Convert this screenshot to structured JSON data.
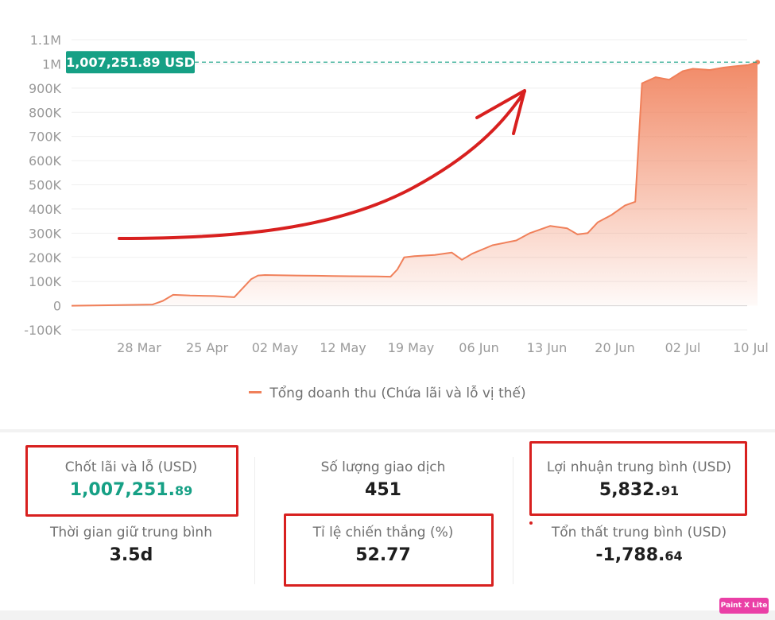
{
  "chart_data": {
    "type": "area",
    "y_ticks": [
      "1.1M",
      "1M",
      "900K",
      "800K",
      "700K",
      "600K",
      "500K",
      "400K",
      "300K",
      "200K",
      "100K",
      "0",
      "-100K"
    ],
    "x_ticks": [
      "28 Mar",
      "25 Apr",
      "02 May",
      "12 May",
      "19 May",
      "06 Jun",
      "13 Jun",
      "20 Jun",
      "02 Jul",
      "10 Jul"
    ],
    "ylim": [
      -100000,
      1100000
    ],
    "grid": true,
    "legend_position": "bottom-center",
    "series": [
      {
        "name": "Tổng doanh thu (Chứa lãi và lỗ vị thế)",
        "color": "#f0805a",
        "x_index": [
          0,
          0.55,
          1.2,
          1.35,
          1.5,
          1.75,
          2.1,
          2.4,
          2.65,
          2.75,
          2.85,
          3.3,
          3.6,
          3.85,
          4.1,
          4.5,
          4.7,
          4.8,
          4.9,
          5.05,
          5.35,
          5.6,
          5.75,
          5.9,
          6.2,
          6.55,
          6.75,
          7.05,
          7.3,
          7.45,
          7.6,
          7.75,
          7.95,
          8.15,
          8.3,
          8.4,
          8.6,
          8.8,
          9.0,
          9.15,
          9.4,
          9.6,
          9.75,
          9.95,
          10.1
        ],
        "values": [
          0,
          2000,
          5000,
          20000,
          45000,
          42000,
          40000,
          35000,
          110000,
          125000,
          127000,
          125000,
          124000,
          123000,
          122000,
          121000,
          120000,
          150000,
          200000,
          205000,
          210000,
          220000,
          190000,
          215000,
          250000,
          270000,
          300000,
          330000,
          320000,
          295000,
          300000,
          345000,
          375000,
          415000,
          430000,
          920000,
          945000,
          935000,
          970000,
          980000,
          975000,
          985000,
          990000,
          995000,
          1007251.89
        ]
      }
    ],
    "tooltip": {
      "label": "1,007,251.89 USD",
      "value": 1007251.89,
      "color": "#16a085"
    },
    "annotation_arrow": {
      "color": "#d8201f"
    }
  },
  "stats": {
    "realized_pnl": {
      "label": "Chốt lãi và lỗ (USD)",
      "value_int": "1,007,251.",
      "value_frac": "89"
    },
    "trade_count": {
      "label": "Số lượng giao dịch",
      "value": "451"
    },
    "avg_profit": {
      "label": "Lợi nhuận trung bình (USD)",
      "value_int": "5,832.",
      "value_frac": "91"
    },
    "avg_hold_time": {
      "label": "Thời gian giữ trung bình",
      "value": "3.5d"
    },
    "win_rate": {
      "label": "Tỉ lệ chiến thắng (%)",
      "value": "52.77"
    },
    "avg_loss": {
      "label": "Tổn thất trung bình (USD)",
      "value_int": "-1,788.",
      "value_frac": "64"
    }
  },
  "watermark": {
    "text": "Paint X Lite"
  },
  "colors": {
    "accent_green": "#16a085",
    "line": "#f0805a",
    "highlight_red": "#d8201f"
  }
}
